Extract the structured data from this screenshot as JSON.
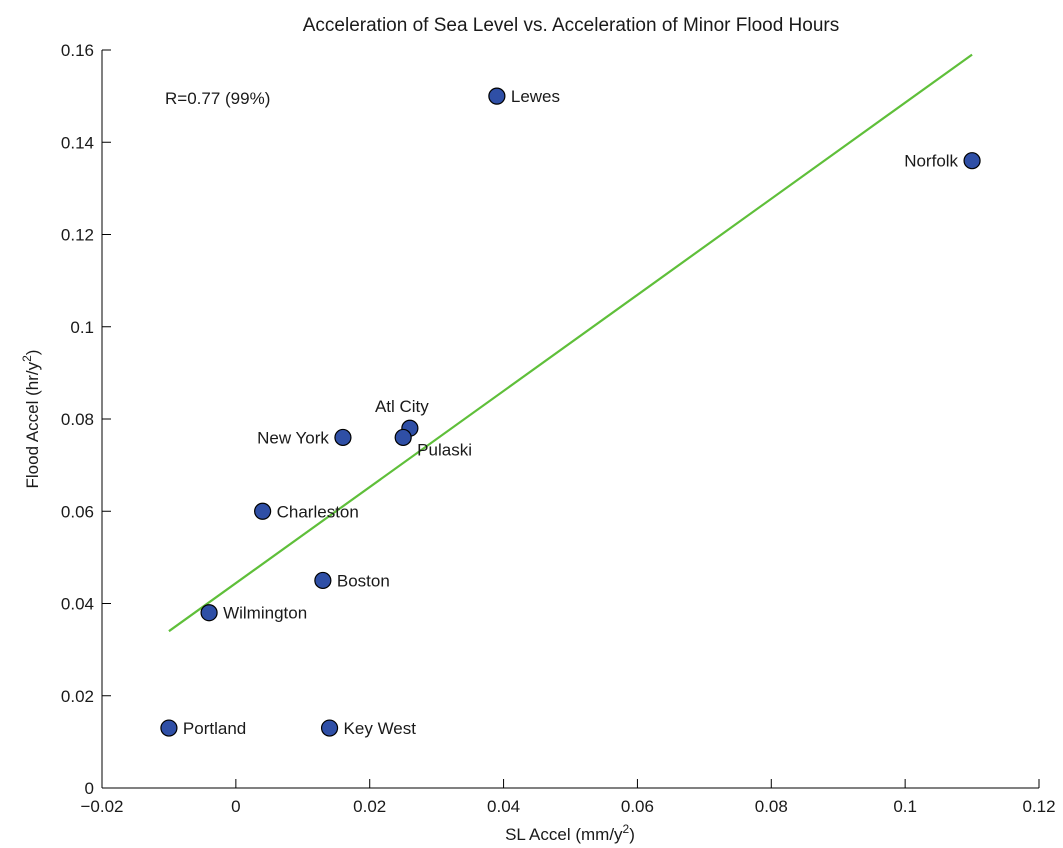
{
  "chart_data": {
    "type": "scatter",
    "title": "Acceleration of Sea Level vs. Acceleration of Minor Flood Hours",
    "xlabel_prefix": "SL Accel (mm/y",
    "xlabel_sup": "2",
    "xlabel_suffix": ")",
    "ylabel_prefix": "Flood Accel (hr/y",
    "ylabel_sup": "2",
    "ylabel_suffix": ")",
    "xlim": [
      -0.02,
      0.12
    ],
    "ylim": [
      0,
      0.16
    ],
    "x_ticks": [
      -0.02,
      0,
      0.02,
      0.04,
      0.06,
      0.08,
      0.1,
      0.12
    ],
    "x_tick_labels": [
      "−0.02",
      "0",
      "0.02",
      "0.04",
      "0.06",
      "0.08",
      "0.1",
      "0.12"
    ],
    "y_ticks": [
      0,
      0.02,
      0.04,
      0.06,
      0.08,
      0.1,
      0.12,
      0.14,
      0.16
    ],
    "y_tick_labels": [
      "0",
      "0.02",
      "0.04",
      "0.06",
      "0.08",
      "0.1",
      "0.12",
      "0.14",
      "0.16"
    ],
    "grid": false,
    "annotation": "R=0.77 (99%)",
    "marker_color": "#2f4fa6",
    "fit_line_color": "#5fbf3a",
    "points": [
      {
        "label": "Lewes",
        "x": 0.039,
        "y": 0.15,
        "label_side": "right"
      },
      {
        "label": "Norfolk",
        "x": 0.11,
        "y": 0.136,
        "label_side": "left"
      },
      {
        "label": "Atl City",
        "x": 0.026,
        "y": 0.078,
        "label_side": "above"
      },
      {
        "label": "New York",
        "x": 0.016,
        "y": 0.076,
        "label_side": "left"
      },
      {
        "label": "Pulaski",
        "x": 0.025,
        "y": 0.076,
        "label_side": "below-right"
      },
      {
        "label": "Charleston",
        "x": 0.004,
        "y": 0.06,
        "label_side": "right"
      },
      {
        "label": "Boston",
        "x": 0.013,
        "y": 0.045,
        "label_side": "right"
      },
      {
        "label": "Wilmington",
        "x": -0.004,
        "y": 0.038,
        "label_side": "right"
      },
      {
        "label": "Portland",
        "x": -0.01,
        "y": 0.013,
        "label_side": "right"
      },
      {
        "label": "Key West",
        "x": 0.014,
        "y": 0.013,
        "label_side": "right"
      }
    ],
    "fit_line": {
      "x": [
        -0.01,
        0.11
      ],
      "y": [
        0.034,
        0.159
      ]
    }
  }
}
